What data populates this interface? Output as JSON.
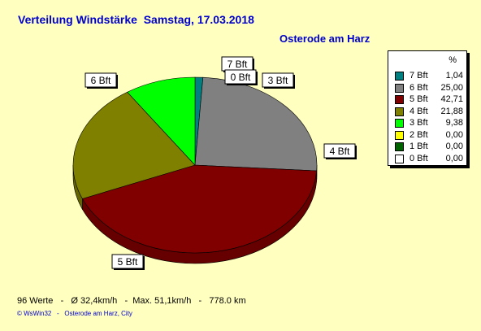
{
  "title": "Verteilung Windstärke  Samstag, 17.03.2018",
  "subtitle": "Osterode am Harz",
  "legend_header": "%",
  "footer": "96 Werte   -   Ø 32,4km/h   -  Max. 51,1km/h   -   778.0 km",
  "credit": "© WsWin32   -   Osterode am Harz, City",
  "colors": {
    "background": "#FFFFC0",
    "title": "#0000CC"
  },
  "chart_data": {
    "type": "pie",
    "title": "Verteilung Windstärke  Samstag, 17.03.2018",
    "subtitle": "Osterode am Harz",
    "legend_position": "right",
    "slices": [
      {
        "label": "7 Bft",
        "value": 1.04,
        "value_text": "1,04",
        "color": "#008080"
      },
      {
        "label": "6 Bft",
        "value": 25.0,
        "value_text": "25,00",
        "color": "#808080"
      },
      {
        "label": "5 Bft",
        "value": 42.71,
        "value_text": "42,71",
        "color": "#800000"
      },
      {
        "label": "4 Bft",
        "value": 21.88,
        "value_text": "21,88",
        "color": "#808000"
      },
      {
        "label": "3 Bft",
        "value": 9.38,
        "value_text": "9,38",
        "color": "#00FF00"
      },
      {
        "label": "2 Bft",
        "value": 0.0,
        "value_text": "0,00",
        "color": "#FFFF00"
      },
      {
        "label": "1 Bft",
        "value": 0.0,
        "value_text": "0,00",
        "color": "#006400"
      },
      {
        "label": "0 Bft",
        "value": 0.0,
        "value_text": "0,00",
        "color": "#FFFFFF"
      }
    ],
    "slice_labels_shown": [
      "7 Bft",
      "0 Bft",
      "3 Bft",
      "4 Bft",
      "5 Bft",
      "6 Bft"
    ]
  }
}
